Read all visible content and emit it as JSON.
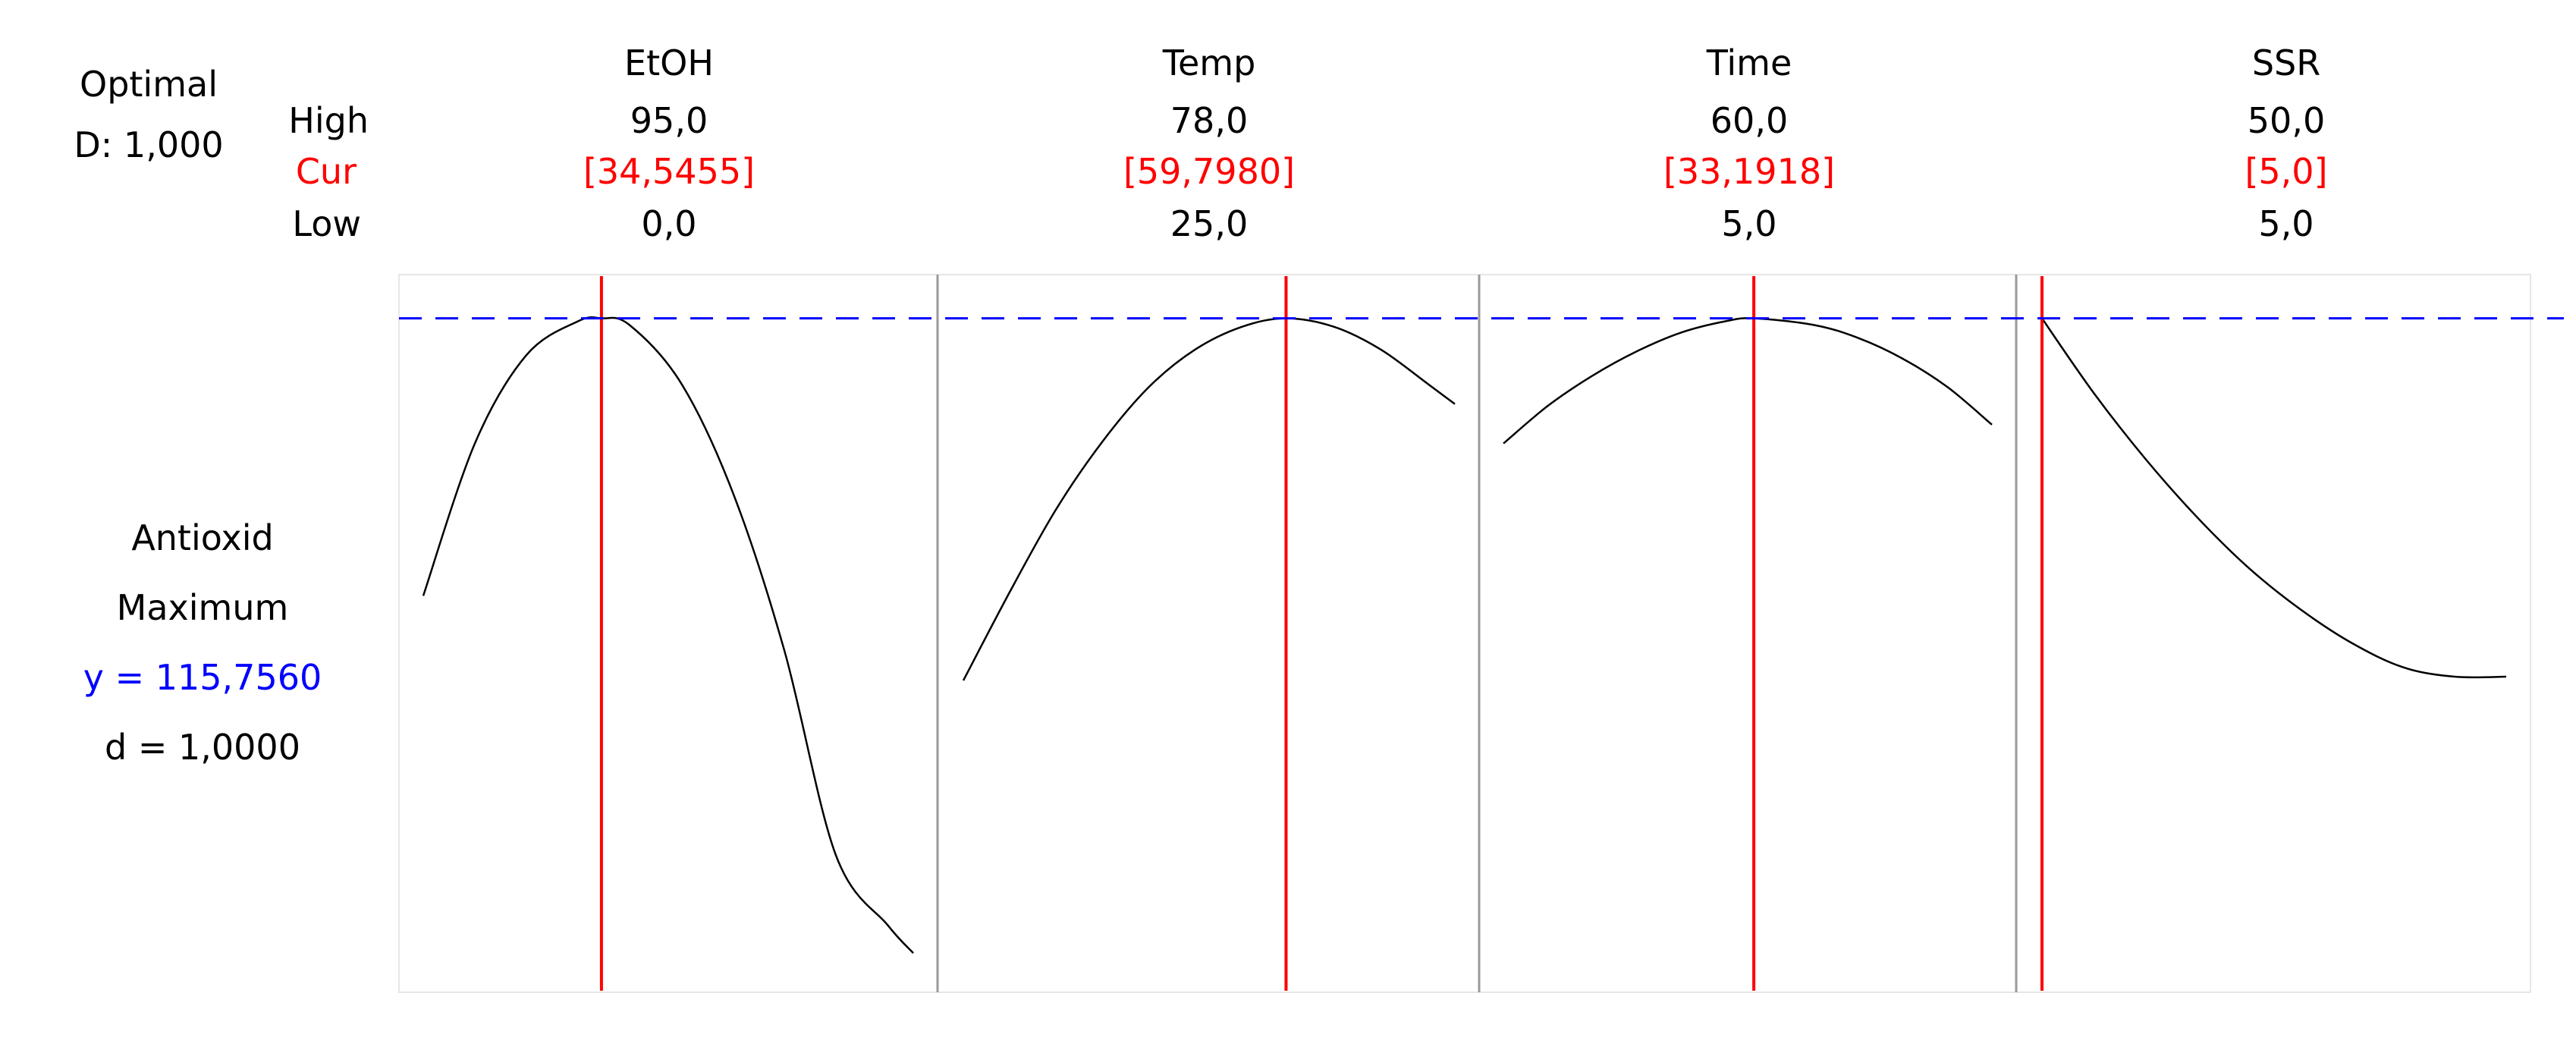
{
  "header": {
    "optimal_label": "Optimal",
    "d_label": "D: 1,000",
    "high_label": "High",
    "cur_label": "Cur",
    "low_label": "Low"
  },
  "factors": [
    {
      "name": "EtOH",
      "high": "95,0",
      "cur": "[34,5455]",
      "low": "0,0"
    },
    {
      "name": "Temp",
      "high": "78,0",
      "cur": "[59,7980]",
      "low": "25,0"
    },
    {
      "name": "Time",
      "high": "60,0",
      "cur": "[33,1918]",
      "low": "5,0"
    },
    {
      "name": "SSR",
      "high": "50,0",
      "cur": "[5,0]",
      "low": "5,0"
    }
  ],
  "response": {
    "name": "Antioxid",
    "goal": "Maximum",
    "y_text": "y = 115,7560",
    "d_text": "d = 1,0000"
  },
  "colors": {
    "current_line": "#ff0000",
    "optimum_line": "#0000ff",
    "curve": "#000000",
    "cur_text": "#ff0000",
    "y_text": "#0000ff"
  },
  "chart_data": {
    "type": "line",
    "title": "",
    "ylabel": "Antioxid",
    "optimum_y": 115.756,
    "ylim": [
      80,
      118
    ],
    "panels": [
      {
        "factor": "EtOH",
        "xlim": [
          0,
          95
        ],
        "current_x": 34.5455,
        "x": [
          0,
          10,
          20,
          30,
          34.5455,
          40,
          50,
          60,
          70,
          80,
          90,
          95
        ],
        "y": [
          101.0,
          109.1,
          113.8,
          115.6,
          115.756,
          115.4,
          112.3,
          106.5,
          98.1,
          87.2,
          83.5,
          82.0
        ]
      },
      {
        "factor": "Temp",
        "xlim": [
          25,
          78
        ],
        "current_x": 59.798,
        "x": [
          25,
          30,
          35,
          40,
          45,
          50,
          55,
          59.798,
          65,
          70,
          75,
          78
        ],
        "y": [
          96.5,
          101.2,
          105.6,
          109.2,
          112.1,
          114.1,
          115.3,
          115.756,
          115.3,
          114.1,
          112.3,
          111.2
        ]
      },
      {
        "factor": "Time",
        "xlim": [
          5,
          60
        ],
        "current_x": 33.1918,
        "x": [
          5,
          10,
          15,
          20,
          25,
          30,
          33.1918,
          40,
          45,
          50,
          55,
          60
        ],
        "y": [
          109.1,
          111.1,
          112.7,
          114.0,
          115.0,
          115.6,
          115.756,
          115.4,
          114.7,
          113.6,
          112.1,
          110.1
        ]
      },
      {
        "factor": "SSR",
        "xlim": [
          5,
          50
        ],
        "current_x": 5.0,
        "x": [
          5,
          10,
          15,
          20,
          25,
          30,
          35,
          40,
          45,
          50
        ],
        "y": [
          115.756,
          111.8,
          108.3,
          105.2,
          102.5,
          100.3,
          98.5,
          97.2,
          96.7,
          96.7
        ]
      }
    ]
  }
}
